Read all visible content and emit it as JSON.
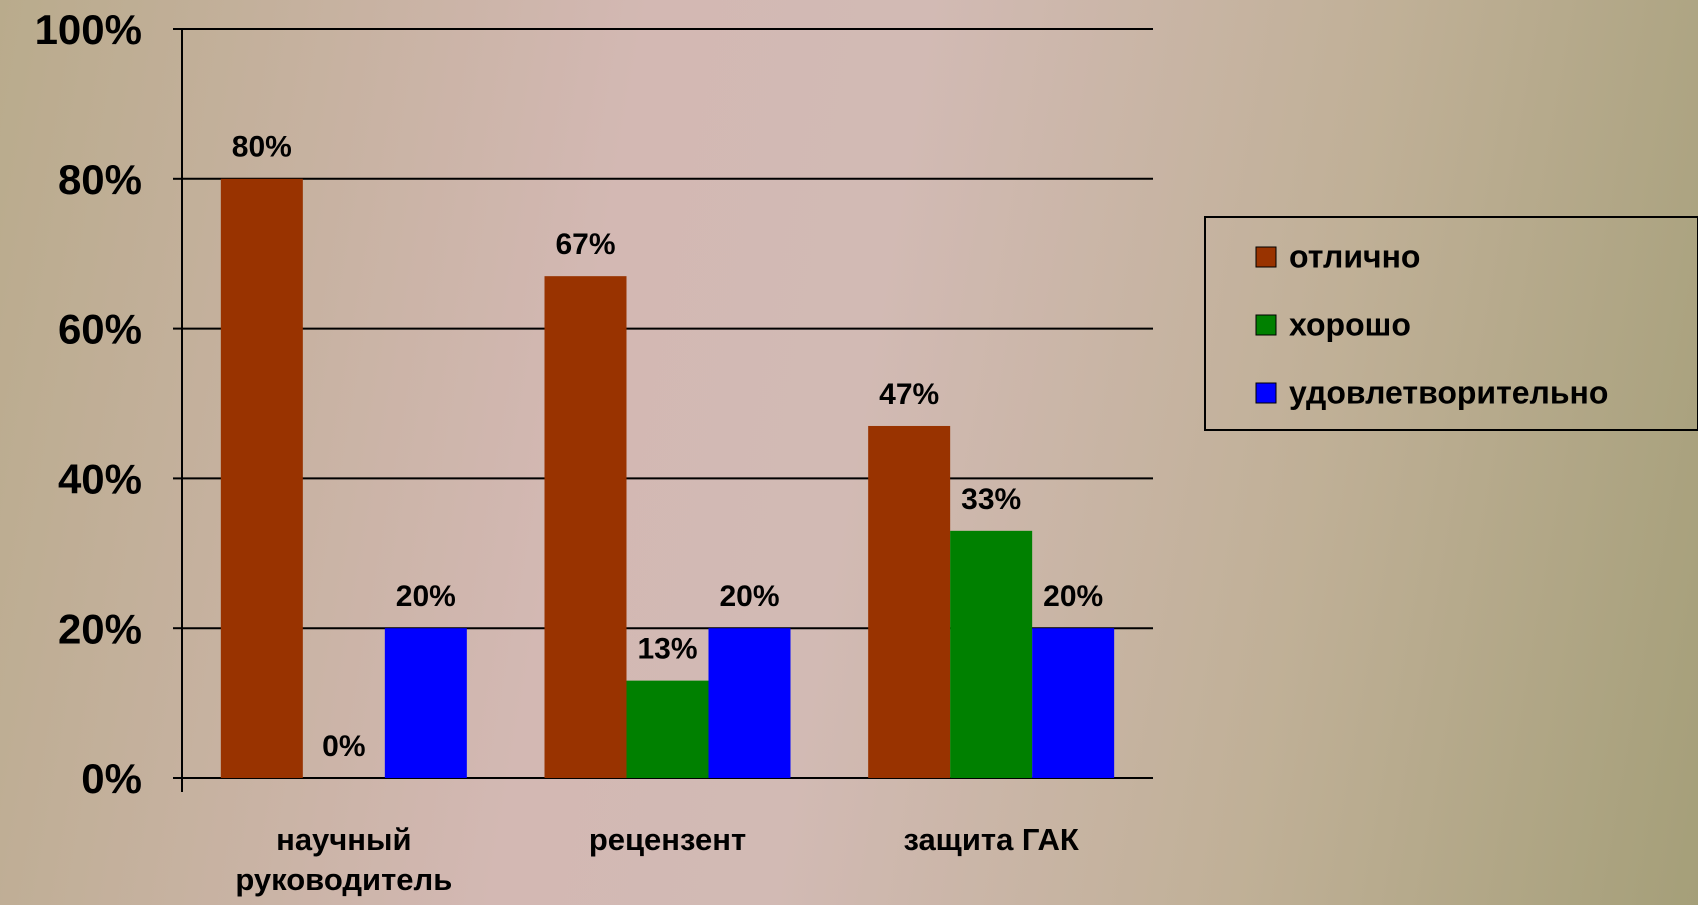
{
  "chart_data": {
    "type": "bar",
    "categories": [
      "научный руководитель",
      "рецензент",
      "защита ГАК"
    ],
    "series": [
      {
        "name": "отлично",
        "color": "#993300",
        "values": [
          80,
          67,
          47
        ],
        "value_labels": [
          "80%",
          "67%",
          "47%"
        ]
      },
      {
        "name": "хорошо",
        "color": "#008000",
        "values": [
          0,
          13,
          33
        ],
        "value_labels": [
          "0%",
          "13%",
          "33%"
        ]
      },
      {
        "name": "удовлетворительно",
        "color": "#0000ff",
        "values": [
          20,
          20,
          20
        ],
        "value_labels": [
          "20%",
          "20%",
          "20%"
        ]
      }
    ],
    "ylim": [
      0,
      100
    ],
    "yticks": [
      {
        "value": 0,
        "label": "0%"
      },
      {
        "value": 20,
        "label": "20%"
      },
      {
        "value": 40,
        "label": "40%"
      },
      {
        "value": 60,
        "label": "60%"
      },
      {
        "value": 80,
        "label": "80%"
      },
      {
        "value": 100,
        "label": "100%"
      }
    ],
    "grid": true,
    "legend": "right"
  }
}
